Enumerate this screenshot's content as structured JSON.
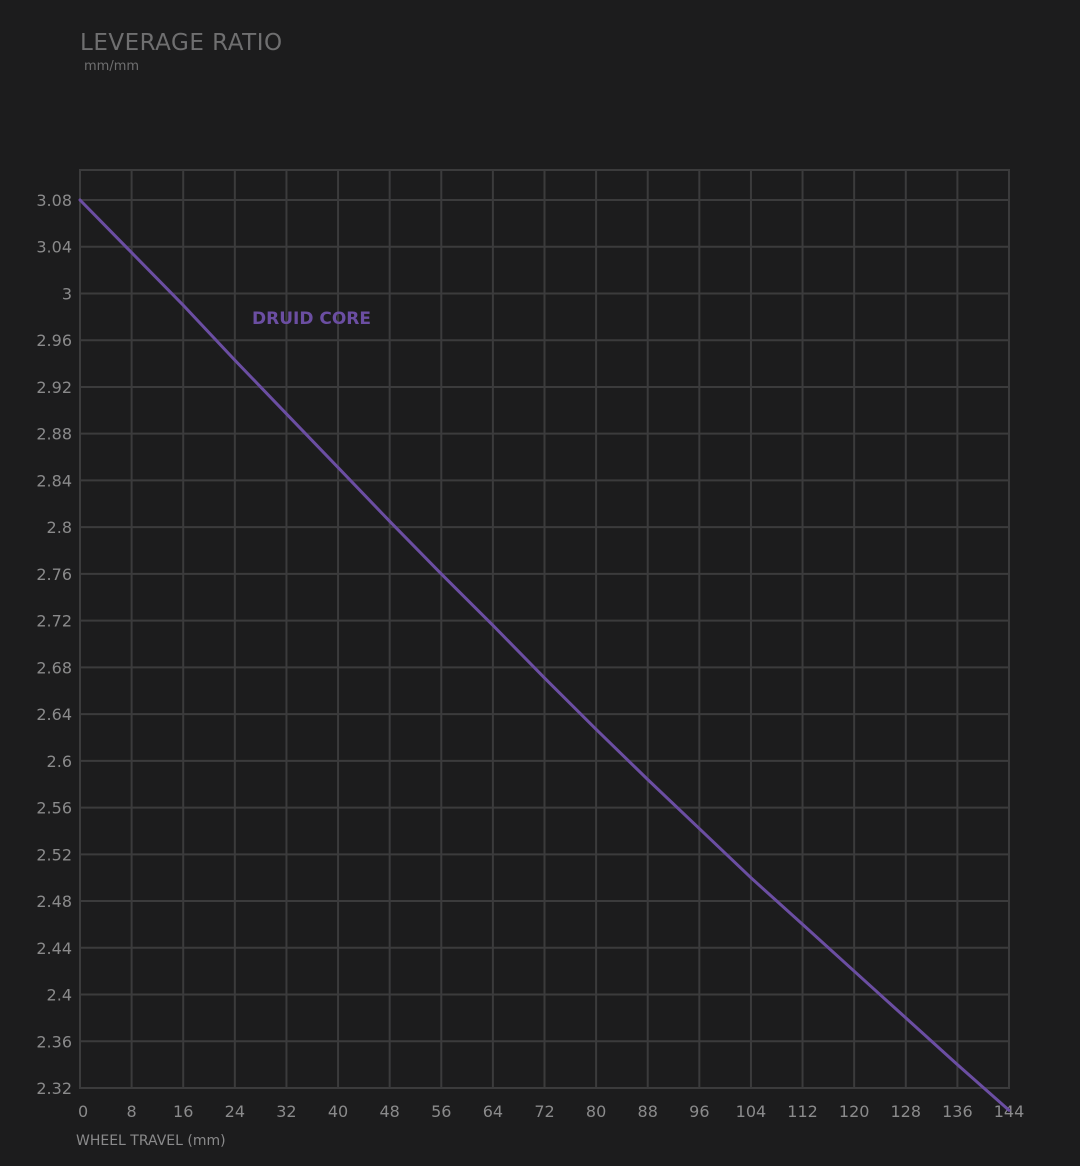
{
  "chart_data": {
    "type": "line",
    "title": "LEVERAGE RATIO",
    "subtitle": "mm/mm",
    "xlabel": "WHEEL TRAVEL (mm)",
    "ylabel": "",
    "xlim": [
      0,
      144
    ],
    "ylim": [
      2.32,
      3.08
    ],
    "x_ticks": [
      0,
      8,
      16,
      24,
      32,
      40,
      48,
      56,
      64,
      72,
      80,
      88,
      96,
      104,
      112,
      120,
      128,
      136,
      144
    ],
    "y_ticks": [
      3.08,
      3.04,
      3,
      2.96,
      2.92,
      2.88,
      2.84,
      2.8,
      2.76,
      2.72,
      2.68,
      2.64,
      2.6,
      2.56,
      2.52,
      2.48,
      2.44,
      2.4,
      2.36,
      2.32
    ],
    "grid": true,
    "series": [
      {
        "name": "DRUID CORE",
        "color": "#6b4ea2",
        "x": [
          0,
          8,
          16,
          24,
          32,
          40,
          48,
          56,
          64,
          72,
          80,
          88,
          96,
          104,
          112,
          120,
          128,
          136,
          144
        ],
        "y": [
          3.08,
          3.035,
          2.99,
          2.943,
          2.897,
          2.851,
          2.805,
          2.76,
          2.716,
          2.671,
          2.627,
          2.584,
          2.542,
          2.5,
          2.46,
          2.42,
          2.38,
          2.34,
          2.301
        ]
      }
    ]
  }
}
